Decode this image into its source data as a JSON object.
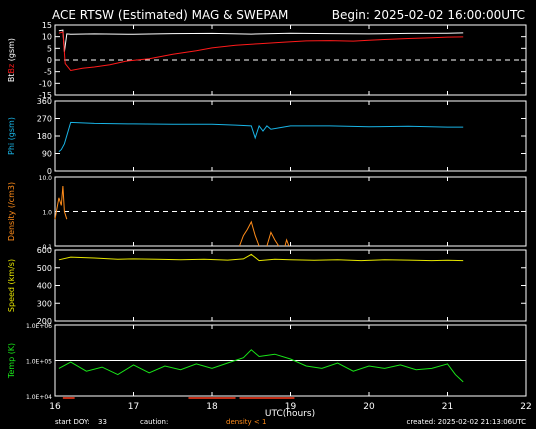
{
  "header": {
    "title": "ACE RTSW (Estimated) MAG & SWEPAM",
    "begin": "Begin: 2025-02-02 16:00:00UTC"
  },
  "footer": {
    "start_doy_label": "start DOY:",
    "start_doy": "33",
    "caution_label": "caution:",
    "density_note": "density < 1",
    "created": "created: 2025-02-02 21:13:06UTC"
  },
  "colors": {
    "background": "#000000",
    "frame": "#ffffff",
    "bt": "#ffffff",
    "bz": "#ff1a1a",
    "phi": "#19b4e6",
    "density": "#ff8c1a",
    "speed": "#e6e600",
    "temp": "#19e619",
    "caution": "#ff3a1a"
  },
  "chart_data": {
    "type": "line",
    "xlabel": "UTC(hours)",
    "xlim": [
      16,
      22
    ],
    "xticks": [
      "16",
      "17",
      "18",
      "19",
      "20",
      "21",
      "22"
    ],
    "panels": [
      {
        "id": "mag",
        "ylabel": [
          {
            "text": "Bt",
            "color": "#ffffff"
          },
          {
            "text": "Bz",
            "color": "#ff1a1a"
          },
          {
            "text": " (gsm)",
            "color": "#ffffff"
          }
        ],
        "scale": "linear",
        "ylim": [
          -15,
          15
        ],
        "yticks": [
          "15",
          "10",
          "5",
          "0",
          "-5",
          "-10",
          "-15"
        ],
        "yticks_values": [
          15,
          10,
          5,
          0,
          -5,
          -10,
          -15
        ],
        "reference_line": 0,
        "series": [
          {
            "key": "bt",
            "x": [
              16.05,
              16.1,
              16.12,
              16.15,
              16.2,
              16.5,
              17.0,
              17.5,
              18.0,
              18.5,
              19.0,
              19.5,
              20.0,
              20.5,
              21.0,
              21.2
            ],
            "y": [
              12.5,
              12.8,
              3.5,
              11.2,
              11.0,
              11.2,
              11.0,
              11.3,
              11.4,
              11.1,
              11.5,
              11.3,
              11.2,
              11.4,
              11.5,
              11.6
            ]
          },
          {
            "key": "bz",
            "x": [
              16.05,
              16.1,
              16.13,
              16.2,
              16.35,
              16.5,
              16.7,
              16.9,
              17.2,
              17.5,
              17.8,
              18.0,
              18.3,
              18.6,
              18.9,
              19.2,
              19.5,
              19.8,
              20.0,
              20.2,
              20.5,
              20.8,
              21.0,
              21.2
            ],
            "y": [
              11.5,
              12.0,
              -1.5,
              -4.5,
              -3.5,
              -3.0,
              -2.0,
              -0.5,
              0.5,
              2.5,
              4.0,
              5.2,
              6.3,
              7.0,
              7.6,
              8.2,
              8.3,
              8.1,
              8.5,
              8.8,
              9.2,
              9.5,
              9.8,
              9.9
            ]
          }
        ]
      },
      {
        "id": "phi",
        "ylabel": [
          {
            "text": "Phi (gsm)",
            "color": "#19b4e6"
          }
        ],
        "scale": "linear",
        "ylim": [
          0,
          360
        ],
        "yticks": [
          "360",
          "270",
          "180",
          "90",
          "0"
        ],
        "yticks_values": [
          360,
          270,
          180,
          90,
          0
        ],
        "series": [
          {
            "key": "phi",
            "x": [
              16.05,
              16.08,
              16.12,
              16.2,
              16.5,
              17.0,
              17.5,
              18.0,
              18.3,
              18.5,
              18.55,
              18.6,
              18.65,
              18.7,
              18.75,
              19.0,
              19.5,
              20.0,
              20.5,
              21.0,
              21.2
            ],
            "y": [
              100,
              110,
              140,
              250,
              245,
              242,
              240,
              240,
              236,
              232,
              170,
              232,
              205,
              232,
              215,
              232,
              232,
              228,
              230,
              226,
              226
            ]
          }
        ]
      },
      {
        "id": "density",
        "ylabel": [
          {
            "text": "Density (/cm3)",
            "color": "#ff8c1a"
          }
        ],
        "scale": "log",
        "ylim": [
          0.1,
          10
        ],
        "yticks": [
          "10.0",
          "1.0",
          "0.1"
        ],
        "yticks_values": [
          10,
          1,
          0.1
        ],
        "reference_line": 1,
        "series": [
          {
            "key": "density",
            "x": [
              16.0,
              16.05,
              16.08,
              16.1,
              16.12,
              16.15
            ],
            "y": [
              0.6,
              2.5,
              1.5,
              5.5,
              1.0,
              0.6
            ]
          },
          {
            "key": "density",
            "x": [
              18.35,
              18.4,
              18.45,
              18.5,
              18.55,
              18.6
            ],
            "y": [
              0.1,
              0.2,
              0.3,
              0.5,
              0.2,
              0.1
            ]
          },
          {
            "key": "density",
            "x": [
              18.7,
              18.75,
              18.8,
              18.85
            ],
            "y": [
              0.1,
              0.25,
              0.15,
              0.1
            ]
          },
          {
            "key": "density",
            "x": [
              18.93,
              18.95,
              18.98
            ],
            "y": [
              0.1,
              0.15,
              0.1
            ]
          }
        ]
      },
      {
        "id": "speed",
        "ylabel": [
          {
            "text": "Speed (km/s)",
            "color": "#e6e600"
          }
        ],
        "scale": "linear",
        "ylim": [
          200,
          600
        ],
        "yticks": [
          "600",
          "500",
          "400",
          "300",
          "200"
        ],
        "yticks_values": [
          600,
          500,
          400,
          300,
          200
        ],
        "series": [
          {
            "key": "speed",
            "x": [
              16.05,
              16.2,
              16.5,
              16.8,
              17.0,
              17.3,
              17.6,
              17.9,
              18.2,
              18.4,
              18.5,
              18.6,
              18.8,
              19.0,
              19.3,
              19.6,
              19.9,
              20.2,
              20.5,
              20.8,
              21.0,
              21.2
            ],
            "y": [
              545,
              560,
              555,
              548,
              550,
              548,
              545,
              548,
              543,
              550,
              575,
              540,
              548,
              545,
              542,
              545,
              540,
              545,
              543,
              540,
              542,
              540
            ]
          }
        ]
      },
      {
        "id": "temp",
        "ylabel": [
          {
            "text": "Temp (K)",
            "color": "#19e619"
          }
        ],
        "scale": "log",
        "ylim": [
          10000,
          1000000
        ],
        "yticks": [
          "1.0E+06",
          "1.0E+05",
          "1.0E+04"
        ],
        "yticks_values": [
          1000000,
          100000,
          10000
        ],
        "reference_line": 100000,
        "series": [
          {
            "key": "temp",
            "x": [
              16.05,
              16.2,
              16.4,
              16.6,
              16.8,
              17.0,
              17.2,
              17.4,
              17.6,
              17.8,
              18.0,
              18.2,
              18.4,
              18.5,
              18.6,
              18.8,
              19.0,
              19.2,
              19.4,
              19.6,
              19.8,
              20.0,
              20.2,
              20.4,
              20.6,
              20.8,
              21.0,
              21.1,
              21.2
            ],
            "y": [
              60000,
              90000,
              50000,
              65000,
              40000,
              75000,
              45000,
              70000,
              55000,
              80000,
              60000,
              85000,
              120000,
              200000,
              130000,
              150000,
              110000,
              70000,
              60000,
              85000,
              50000,
              70000,
              60000,
              75000,
              55000,
              60000,
              80000,
              40000,
              25000
            ]
          }
        ]
      }
    ]
  }
}
